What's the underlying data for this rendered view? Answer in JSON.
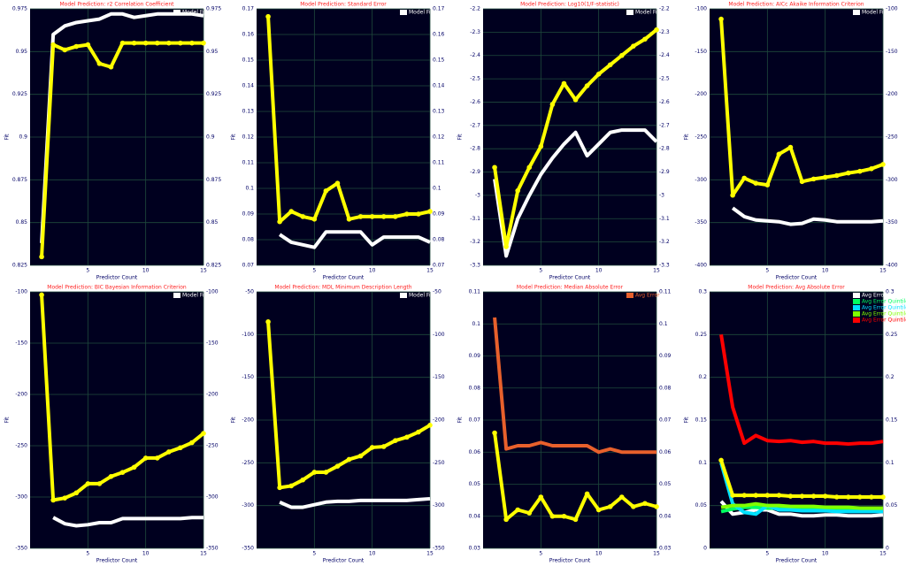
{
  "chart_data": [
    {
      "type": "line",
      "title": "Model Prediction: r2 Correlation Coefficient",
      "x_label": "Predictor Count",
      "y_label": "Fit",
      "x": [
        1,
        2,
        3,
        4,
        5,
        6,
        7,
        8,
        9,
        10,
        11,
        12,
        13,
        14,
        15
      ],
      "xlim": [
        0,
        15
      ],
      "xticks": [
        5,
        10,
        15
      ],
      "ylim": [
        0.825,
        0.975
      ],
      "yticks": [
        0.825,
        0.85,
        0.875,
        0.9,
        0.925,
        0.95,
        0.975
      ],
      "grid": true,
      "legend": "upper right",
      "series": [
        {
          "name": "Model Fit",
          "color": "#ffffff",
          "values": [
            0.838,
            0.96,
            0.965,
            0.967,
            0.968,
            0.969,
            0.972,
            0.972,
            0.97,
            0.971,
            0.972,
            0.972,
            0.972,
            0.972,
            0.971
          ]
        },
        {
          "color": "#ffff00",
          "values": [
            0.83,
            0.954,
            0.951,
            0.953,
            0.954,
            0.943,
            0.941,
            0.955,
            0.955,
            0.955,
            0.955,
            0.955,
            0.955,
            0.955,
            0.955
          ]
        }
      ]
    },
    {
      "type": "line",
      "title": "Model Prediction: Standard Error",
      "x_label": "Predictor Count",
      "y_label": "Fit",
      "x": [
        1,
        2,
        3,
        4,
        5,
        6,
        7,
        8,
        9,
        10,
        11,
        12,
        13,
        14,
        15
      ],
      "xlim": [
        0,
        15
      ],
      "xticks": [
        5,
        10,
        15
      ],
      "ylim": [
        0.07,
        0.17
      ],
      "yticks": [
        0.07,
        0.08,
        0.09,
        0.1,
        0.11,
        0.12,
        0.13,
        0.14,
        0.15,
        0.16,
        0.17
      ],
      "grid": true,
      "legend": "upper right",
      "series": [
        {
          "name": "Model Fit",
          "color": "#ffffff",
          "values": [
            null,
            0.082,
            0.079,
            0.078,
            0.077,
            0.083,
            0.083,
            0.083,
            0.083,
            0.078,
            0.081,
            0.081,
            0.081,
            0.081,
            0.079
          ]
        },
        {
          "color": "#ffff00",
          "values": [
            0.167,
            0.087,
            0.091,
            0.089,
            0.088,
            0.099,
            0.102,
            0.088,
            0.089,
            0.089,
            0.089,
            0.089,
            0.09,
            0.09,
            0.091
          ]
        }
      ]
    },
    {
      "type": "line",
      "title": "Model Prediction: Log10(1/F-statistic)",
      "x_label": "Predictor Count",
      "y_label": "Fit",
      "x": [
        1,
        2,
        3,
        4,
        5,
        6,
        7,
        8,
        9,
        10,
        11,
        12,
        13,
        14,
        15
      ],
      "xlim": [
        0,
        15
      ],
      "xticks": [
        5,
        10,
        15
      ],
      "ylim": [
        -3.3,
        -2.2
      ],
      "yticks": [
        -3.3,
        -3.2,
        -3.1,
        -3,
        -2.9,
        -2.8,
        -2.7,
        -2.6,
        -2.5,
        -2.4,
        -2.3,
        -2.2
      ],
      "grid": true,
      "legend": "upper right",
      "series": [
        {
          "name": "Model Fit",
          "color": "#ffffff",
          "values": [
            -2.93,
            -3.26,
            -3.1,
            -3.0,
            -2.91,
            -2.84,
            -2.78,
            -2.73,
            -2.83,
            -2.78,
            -2.73,
            -2.72,
            -2.72,
            -2.72,
            -2.77
          ]
        },
        {
          "color": "#ffff00",
          "values": [
            -2.88,
            -3.22,
            -2.98,
            -2.88,
            -2.79,
            -2.61,
            -2.52,
            -2.59,
            -2.53,
            -2.48,
            -2.44,
            -2.4,
            -2.36,
            -2.33,
            -2.29
          ]
        }
      ]
    },
    {
      "type": "line",
      "title": "Model Prediction: AICc Akaike Information Criterion",
      "x_label": "Predictor Count",
      "y_label": "Fit",
      "x": [
        1,
        2,
        3,
        4,
        5,
        6,
        7,
        8,
        9,
        10,
        11,
        12,
        13,
        14,
        15
      ],
      "xlim": [
        0,
        15
      ],
      "xticks": [
        5,
        10,
        15
      ],
      "ylim": [
        -400,
        -100
      ],
      "yticks": [
        -400,
        -350,
        -300,
        -250,
        -200,
        -150,
        -100
      ],
      "grid": true,
      "legend": "upper right",
      "series": [
        {
          "name": "Model Fit",
          "color": "#ffffff",
          "values": [
            null,
            -333,
            -343,
            -347,
            -348,
            -349,
            -352,
            -351,
            -346,
            -347,
            -349,
            -349,
            -349,
            -349,
            -348
          ]
        },
        {
          "color": "#ffff00",
          "values": [
            -112,
            -318,
            -298,
            -304,
            -306,
            -270,
            -262,
            -302,
            -299,
            -297,
            -295,
            -292,
            -290,
            -287,
            -282
          ]
        }
      ]
    },
    {
      "type": "line",
      "title": "Model Prediction: BIC Bayesian Information Criterion",
      "x_label": "Predictor Count",
      "y_label": "Fit",
      "x": [
        1,
        2,
        3,
        4,
        5,
        6,
        7,
        8,
        9,
        10,
        11,
        12,
        13,
        14,
        15
      ],
      "xlim": [
        0,
        15
      ],
      "xticks": [
        5,
        10,
        15
      ],
      "ylim": [
        -350,
        -100
      ],
      "yticks": [
        -350,
        -300,
        -250,
        -200,
        -150,
        -100
      ],
      "grid": true,
      "legend": "upper right",
      "series": [
        {
          "name": "Model Fit",
          "color": "#ffffff",
          "values": [
            null,
            -320,
            -326,
            -328,
            -327,
            -325,
            -325,
            -321,
            -321,
            -321,
            -321,
            -321,
            -321,
            -320,
            -320
          ]
        },
        {
          "color": "#ffff00",
          "values": [
            -103,
            -303,
            -301,
            -296,
            -287,
            -287,
            -280,
            -276,
            -271,
            -262,
            -262,
            -256,
            -252,
            -247,
            -238
          ]
        }
      ]
    },
    {
      "type": "line",
      "title": "Model Prediction: MDL Minimum Description Length",
      "x_label": "Predictor Count",
      "y_label": "Fit",
      "x": [
        1,
        2,
        3,
        4,
        5,
        6,
        7,
        8,
        9,
        10,
        11,
        12,
        13,
        14,
        15
      ],
      "xlim": [
        0,
        15
      ],
      "xticks": [
        5,
        10,
        15
      ],
      "ylim": [
        -350,
        -50
      ],
      "yticks": [
        -350,
        -300,
        -250,
        -200,
        -150,
        -100,
        -50
      ],
      "grid": true,
      "legend": "upper right",
      "series": [
        {
          "name": "Model Fit",
          "color": "#ffffff",
          "values": [
            null,
            -296,
            -302,
            -302,
            -299,
            -296,
            -295,
            -295,
            -294,
            -294,
            -294,
            -294,
            -294,
            -293,
            -292
          ]
        },
        {
          "color": "#ffff00",
          "values": [
            -85,
            -279,
            -277,
            -270,
            -261,
            -261,
            -254,
            -246,
            -242,
            -232,
            -231,
            -224,
            -220,
            -214,
            -206
          ]
        }
      ]
    },
    {
      "type": "line",
      "title": "Model Prediction: Median Absolute Error",
      "x_label": "Predictor Count",
      "y_label": "Fit",
      "x": [
        1,
        2,
        3,
        4,
        5,
        6,
        7,
        8,
        9,
        10,
        11,
        12,
        13,
        14,
        15
      ],
      "xlim": [
        0,
        15
      ],
      "xticks": [
        5,
        10,
        15
      ],
      "ylim": [
        0.03,
        0.11
      ],
      "yticks": [
        0.03,
        0.04,
        0.05,
        0.06,
        0.07,
        0.08,
        0.09,
        0.1,
        0.11
      ],
      "grid": true,
      "legend": "upper right",
      "series": [
        {
          "name": "Avg Error",
          "color": "#e8602c",
          "values": [
            0.102,
            0.061,
            0.062,
            0.062,
            0.063,
            0.062,
            0.062,
            0.062,
            0.062,
            0.06,
            0.061,
            0.06,
            0.06,
            0.06,
            0.06
          ]
        },
        {
          "color": "#ffff00",
          "values": [
            0.066,
            0.039,
            0.042,
            0.041,
            0.046,
            0.04,
            0.04,
            0.039,
            0.047,
            0.042,
            0.043,
            0.046,
            0.043,
            0.044,
            0.043
          ]
        }
      ]
    },
    {
      "type": "line",
      "title": "Model Prediction: Avg Absolute Error",
      "x_label": "Predictor Count",
      "y_label": "Fit",
      "x": [
        1,
        2,
        3,
        4,
        5,
        6,
        7,
        8,
        9,
        10,
        11,
        12,
        13,
        14,
        15
      ],
      "xlim": [
        0,
        15
      ],
      "xticks": [
        5,
        10,
        15
      ],
      "ylim": [
        0,
        0.3
      ],
      "yticks": [
        0,
        0.05,
        0.1,
        0.15,
        0.2,
        0.25,
        0.3
      ],
      "grid": true,
      "legend": "upper right",
      "series": [
        {
          "name": "Avg Error Quintile 1",
          "color": "#ffffff",
          "values": [
            0.055,
            0.04,
            0.042,
            0.045,
            0.045,
            0.04,
            0.04,
            0.038,
            0.038,
            0.039,
            0.039,
            0.038,
            0.038,
            0.038,
            0.039
          ]
        },
        {
          "name": "Avg Error Quintile 2",
          "color": "#00ff60",
          "values": [
            0.043,
            0.046,
            0.048,
            0.048,
            0.047,
            0.047,
            0.047,
            0.047,
            0.047,
            0.046,
            0.046,
            0.046,
            0.045,
            0.045,
            0.045
          ]
        },
        {
          "name": "Avg Error Quintile 3",
          "color": "#00e0ff",
          "values": [
            0.1,
            0.052,
            0.042,
            0.04,
            0.05,
            0.045,
            0.045,
            0.044,
            0.044,
            0.044,
            0.043,
            0.043,
            0.043,
            0.043,
            0.043
          ]
        },
        {
          "name": "Avg Error Quintile 4",
          "color": "#80ff00",
          "values": [
            0.048,
            0.05,
            0.05,
            0.052,
            0.05,
            0.05,
            0.049,
            0.049,
            0.049,
            0.048,
            0.048,
            0.048,
            0.047,
            0.047,
            0.047
          ]
        },
        {
          "name": "Avg Error Quintile 5",
          "color": "#ff0000",
          "values": [
            0.25,
            0.165,
            0.123,
            0.132,
            0.126,
            0.125,
            0.126,
            0.124,
            0.125,
            0.123,
            0.123,
            0.122,
            0.123,
            0.123,
            0.125
          ]
        },
        {
          "color": "#ffff00",
          "values": [
            0.103,
            0.062,
            0.062,
            0.062,
            0.062,
            0.062,
            0.061,
            0.061,
            0.061,
            0.061,
            0.06,
            0.06,
            0.06,
            0.06,
            0.06
          ]
        }
      ]
    }
  ]
}
